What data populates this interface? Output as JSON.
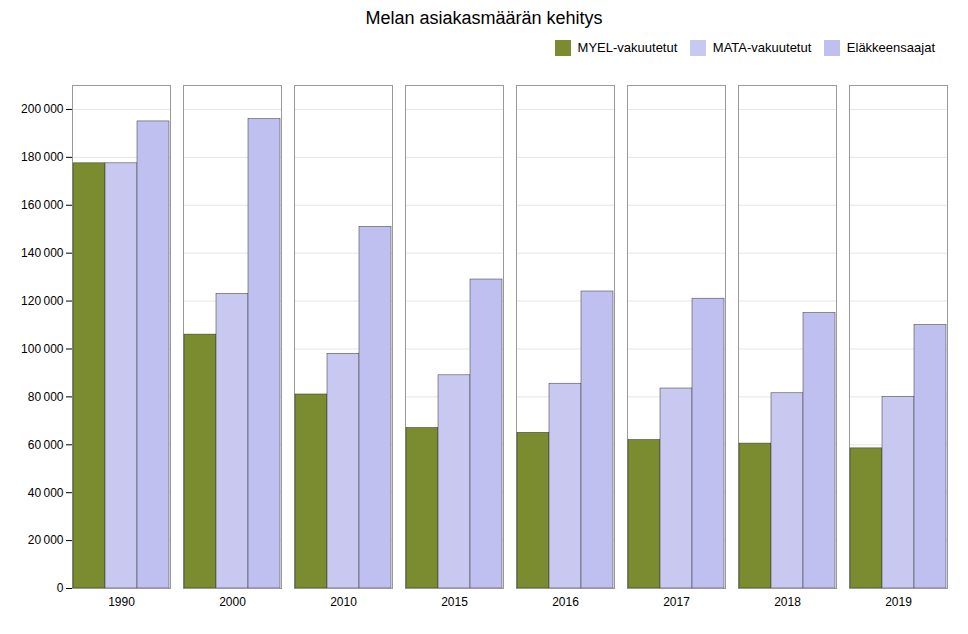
{
  "chart_data": {
    "type": "bar",
    "title": "Melan asiakasmäärän kehitys",
    "categories": [
      "1990",
      "2000",
      "2010",
      "2015",
      "2016",
      "2017",
      "2018",
      "2019"
    ],
    "series": [
      {
        "name": "MYEL-vakuutetut",
        "color": "#7a8b30",
        "values": [
          177500,
          106000,
          81000,
          67000,
          65000,
          62000,
          60500,
          58500
        ]
      },
      {
        "name": "MATA-vakuutetut",
        "color": "#c8c8f0",
        "values": [
          177500,
          123000,
          98000,
          89000,
          85500,
          83500,
          81500,
          80000
        ]
      },
      {
        "name": "Eläkkeensaajat",
        "color": "#c0c0f0",
        "values": [
          195000,
          196000,
          151000,
          129000,
          124000,
          121000,
          115000,
          110000
        ]
      }
    ],
    "ylim": [
      0,
      210000
    ],
    "yticks": [
      0,
      {
        "value": 20000,
        "label": "20 000"
      },
      {
        "value": 40000,
        "label": "40 000"
      },
      {
        "value": 60000,
        "label": "60 000"
      },
      {
        "value": 80000,
        "label": "80 000"
      },
      {
        "value": 100000,
        "label": "100 000"
      },
      {
        "value": 120000,
        "label": "120 000"
      },
      {
        "value": 140000,
        "label": "140 000"
      },
      {
        "value": 160000,
        "label": "160 000"
      },
      {
        "value": 180000,
        "label": "180 000"
      },
      {
        "value": 200000,
        "label": "200 000"
      }
    ],
    "grid": true,
    "legend": "upper right"
  }
}
